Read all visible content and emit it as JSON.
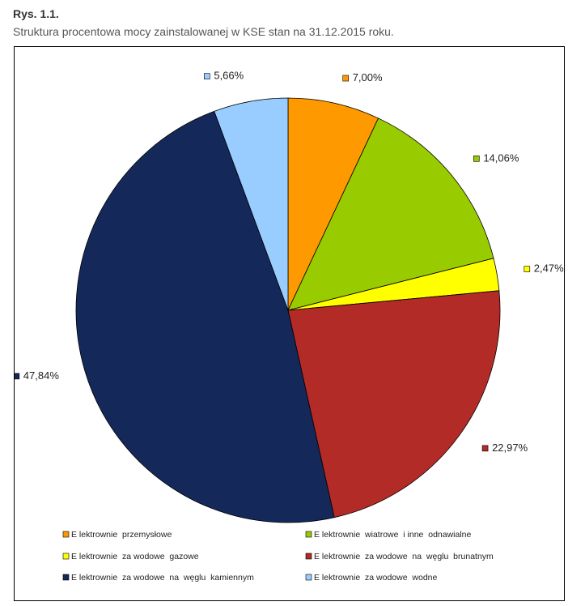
{
  "figure": {
    "label": "Rys. 1.1.",
    "caption": "Struktura procentowa mocy zainstalowanej w KSE stan na 31.12.2015 roku."
  },
  "chart_data": {
    "type": "pie",
    "title": "",
    "slices": [
      {
        "name": "Elektrownie przemysłowe",
        "value": 7.0,
        "label": "7,00%",
        "color": "#ff9900"
      },
      {
        "name": "Elektrownie wiatrowe i inne odnawialne",
        "value": 14.06,
        "label": "14,06%",
        "color": "#99cc00"
      },
      {
        "name": "Elektrownie zawodowe gazowe",
        "value": 2.47,
        "label": "2,47%",
        "color": "#ffff00"
      },
      {
        "name": "Elektrownie zawodowe na węglu brunatnym",
        "value": 22.97,
        "label": "22,97%",
        "color": "#b22b27"
      },
      {
        "name": "Elektrownie zawodowe na węglu kamiennym",
        "value": 47.84,
        "label": "47,84%",
        "color": "#14285a"
      },
      {
        "name": "Elektrownie zawodowe wodne",
        "value": 5.66,
        "label": "5,66%",
        "color": "#99ccff"
      }
    ],
    "start_angle": "12 o'clock",
    "direction": "clockwise",
    "legend_position": "bottom",
    "legend_labels": [
      "E lektrownie  przemysłowe",
      "E lektrownie  wiatrowe  i inne  odnawialne",
      "E lektrownie  za wodowe  gazowe",
      "E lektrownie  za wodowe  na  węglu  brunatnym",
      "E lektrownie  za wodowe  na  węglu  kamiennym",
      "E lektrownie  za wodowe  wodne"
    ]
  }
}
